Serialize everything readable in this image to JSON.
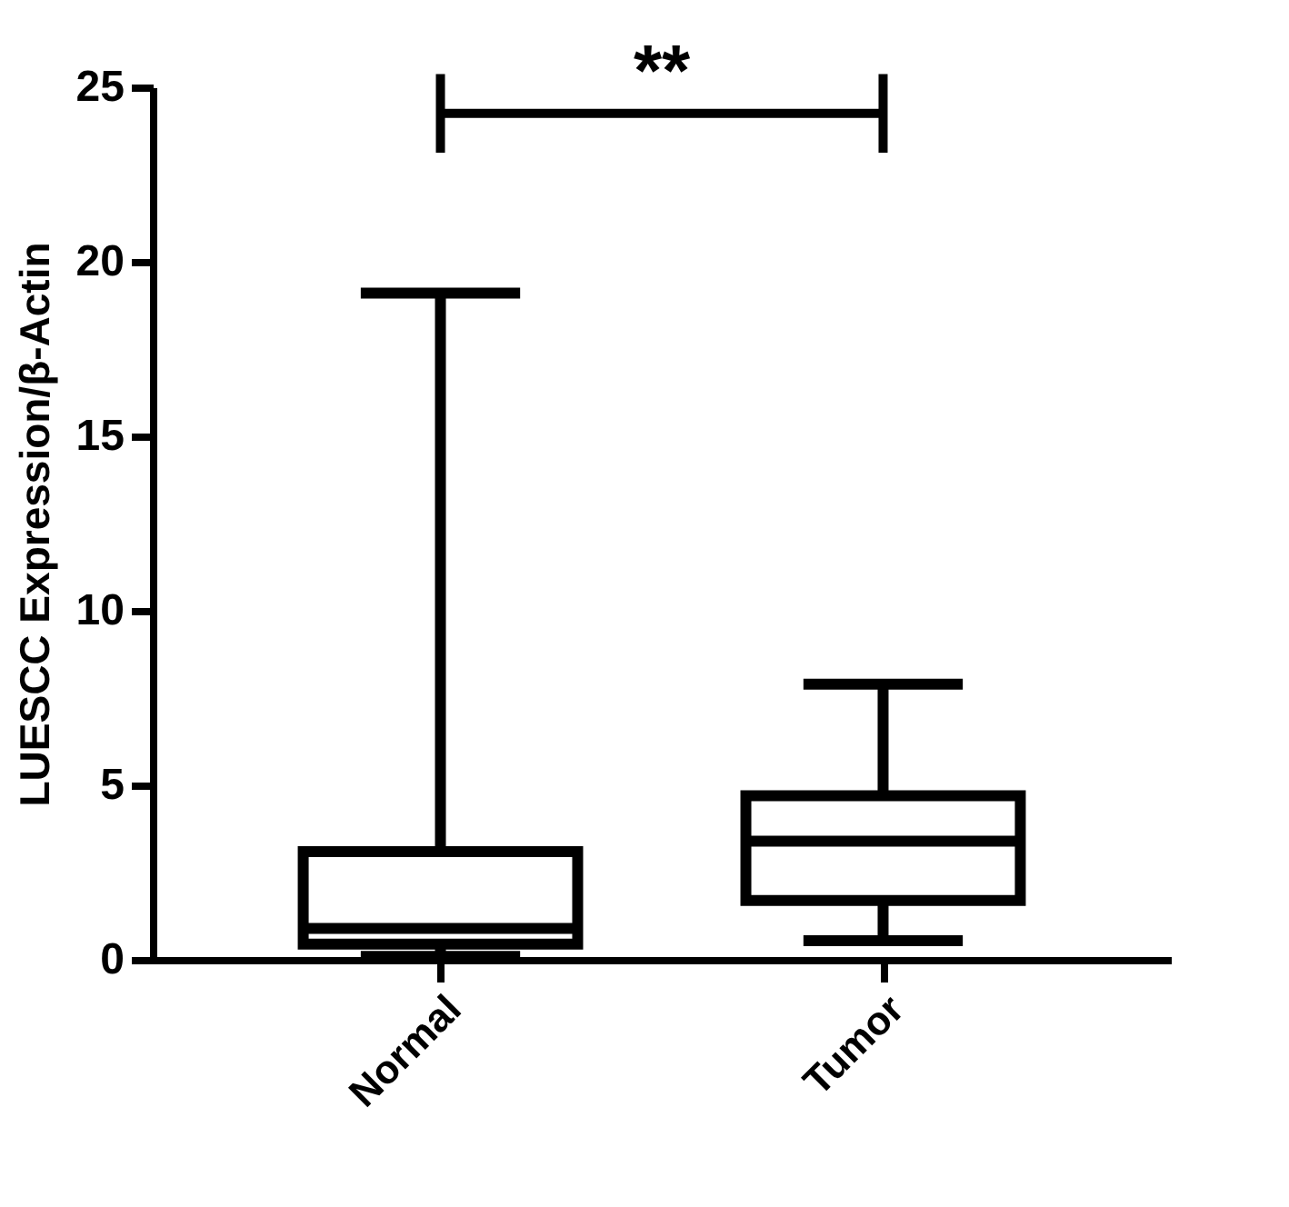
{
  "chart_data": {
    "type": "box",
    "ylabel": "LUESCC Expression/β-Actin",
    "categories": [
      "Normal",
      "Tumor"
    ],
    "boxes": [
      {
        "low": 0.1,
        "q1": 0.45,
        "median": 0.9,
        "q3": 3.1,
        "high": 19.1
      },
      {
        "low": 0.55,
        "q1": 1.7,
        "median": 3.4,
        "q3": 4.7,
        "high": 7.9
      }
    ],
    "ylim": [
      0,
      25
    ],
    "yticks": [
      0,
      5,
      10,
      15,
      20,
      25
    ],
    "grid": false,
    "annotations": [
      "**"
    ]
  }
}
